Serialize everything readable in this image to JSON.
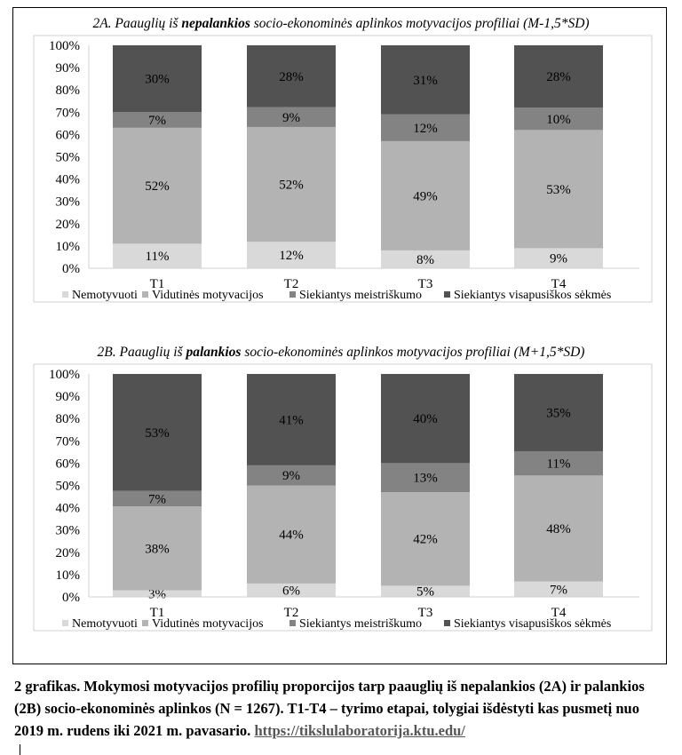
{
  "chart_data": [
    {
      "type": "bar",
      "stacked": true,
      "title_parts": [
        "2A. Paauglių iš ",
        "nepalankios",
        " socio-ekonominės aplinkos motyvacijos profiliai (M-1,5*SD)"
      ],
      "categories": [
        "T1",
        "T2",
        "T3",
        "T4"
      ],
      "ylim": [
        0,
        100
      ],
      "yticks": [
        "0%",
        "10%",
        "20%",
        "30%",
        "40%",
        "50%",
        "60%",
        "70%",
        "80%",
        "90%",
        "100%"
      ],
      "legend_position": "bottom",
      "series": [
        {
          "name": "Nemotyvuoti",
          "color": "#d9d9d9",
          "values": [
            11,
            12,
            8,
            9
          ]
        },
        {
          "name": "Vidutinės motyvacijos",
          "color": "#b3b3b3",
          "values": [
            52,
            52,
            49,
            53
          ]
        },
        {
          "name": "Siekiantys meistriškumo",
          "color": "#838383",
          "values": [
            7,
            9,
            12,
            10
          ]
        },
        {
          "name": "Siekiantys visapusiškos sėkmės",
          "color": "#525252",
          "values": [
            30,
            28,
            31,
            28
          ]
        }
      ]
    },
    {
      "type": "bar",
      "stacked": true,
      "title_parts": [
        "2B. Paauglių iš ",
        "palankios",
        " socio-ekonominės aplinkos motyvacijos profiliai (M+1,5*SD)"
      ],
      "categories": [
        "T1",
        "T2",
        "T3",
        "T4"
      ],
      "ylim": [
        0,
        100
      ],
      "yticks": [
        "0%",
        "10%",
        "20%",
        "30%",
        "40%",
        "50%",
        "60%",
        "70%",
        "80%",
        "90%",
        "100%"
      ],
      "legend_position": "bottom",
      "series": [
        {
          "name": "Nemotyvuoti",
          "color": "#d9d9d9",
          "values": [
            3,
            6,
            5,
            7
          ]
        },
        {
          "name": "Vidutinės motyvacijos",
          "color": "#b3b3b3",
          "values": [
            38,
            44,
            42,
            48
          ]
        },
        {
          "name": "Siekiantys meistriškumo",
          "color": "#838383",
          "values": [
            7,
            9,
            13,
            11
          ]
        },
        {
          "name": "Siekiantys visapusiškos sėkmės",
          "color": "#525252",
          "values": [
            53,
            41,
            40,
            35
          ]
        }
      ]
    }
  ],
  "caption": {
    "text": "2 grafikas. Mokymosi motyvacijos profilių proporcijos tarp paauglių iš nepalankios (2A) ir palankios (2B) socio-ekonominės aplinkos (N = 1267). T1-T4 – tyrimo etapai, tolygiai išdėstyti kas pusmetį nuo 2019 m. rudens iki 2021 m. pavasario. ",
    "link": "https://tikslulaboratorija.ktu.edu/"
  }
}
